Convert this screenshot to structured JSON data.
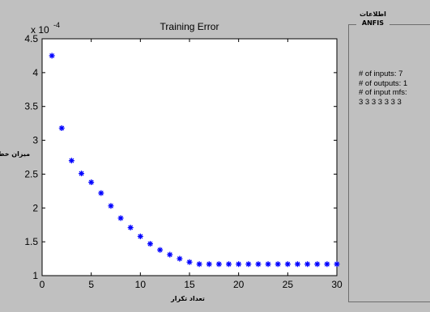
{
  "chart_data": {
    "type": "scatter",
    "title": "Training Error",
    "xlabel": "تعداد تکرار",
    "ylabel": "میزان خطا",
    "y_exponent_label": "x 10",
    "y_exponent_power": "-4",
    "xlim": [
      0,
      30
    ],
    "ylim": [
      1,
      4.5
    ],
    "x_ticks": [
      0,
      5,
      10,
      15,
      20,
      25,
      30
    ],
    "y_ticks": [
      1,
      1.5,
      2,
      2.5,
      3,
      3.5,
      4,
      4.5
    ],
    "x_tick_labels": [
      "0",
      "5",
      "10",
      "15",
      "20",
      "25",
      "30"
    ],
    "y_tick_labels": [
      "1",
      "1.5",
      "2",
      "2.5",
      "3",
      "3.5",
      "4",
      "4.5"
    ],
    "marker": "*",
    "marker_color": "#0000ff",
    "series": [
      {
        "x": [
          1,
          2,
          3,
          4,
          5,
          6,
          7,
          8,
          9,
          10,
          11,
          12,
          13,
          14,
          15,
          16,
          17,
          18,
          19,
          20,
          21,
          22,
          23,
          24,
          25,
          26,
          27,
          28,
          29,
          30
        ],
        "y": [
          4.25,
          3.18,
          2.7,
          2.51,
          2.38,
          2.22,
          2.03,
          1.85,
          1.71,
          1.58,
          1.47,
          1.38,
          1.31,
          1.25,
          1.2,
          1.17,
          1.17,
          1.17,
          1.17,
          1.17,
          1.17,
          1.17,
          1.17,
          1.17,
          1.17,
          1.17,
          1.17,
          1.17,
          1.17,
          1.17
        ]
      }
    ],
    "grid": false
  },
  "info": {
    "title_line1": "اطلاعات",
    "title_line2": "ANFIS",
    "inputs": "# of inputs: 7",
    "outputs": "# of outputs: 1",
    "mfs_label": "# of input mfs:",
    "mfs_values": "3 3 3 3 3 3 3"
  }
}
